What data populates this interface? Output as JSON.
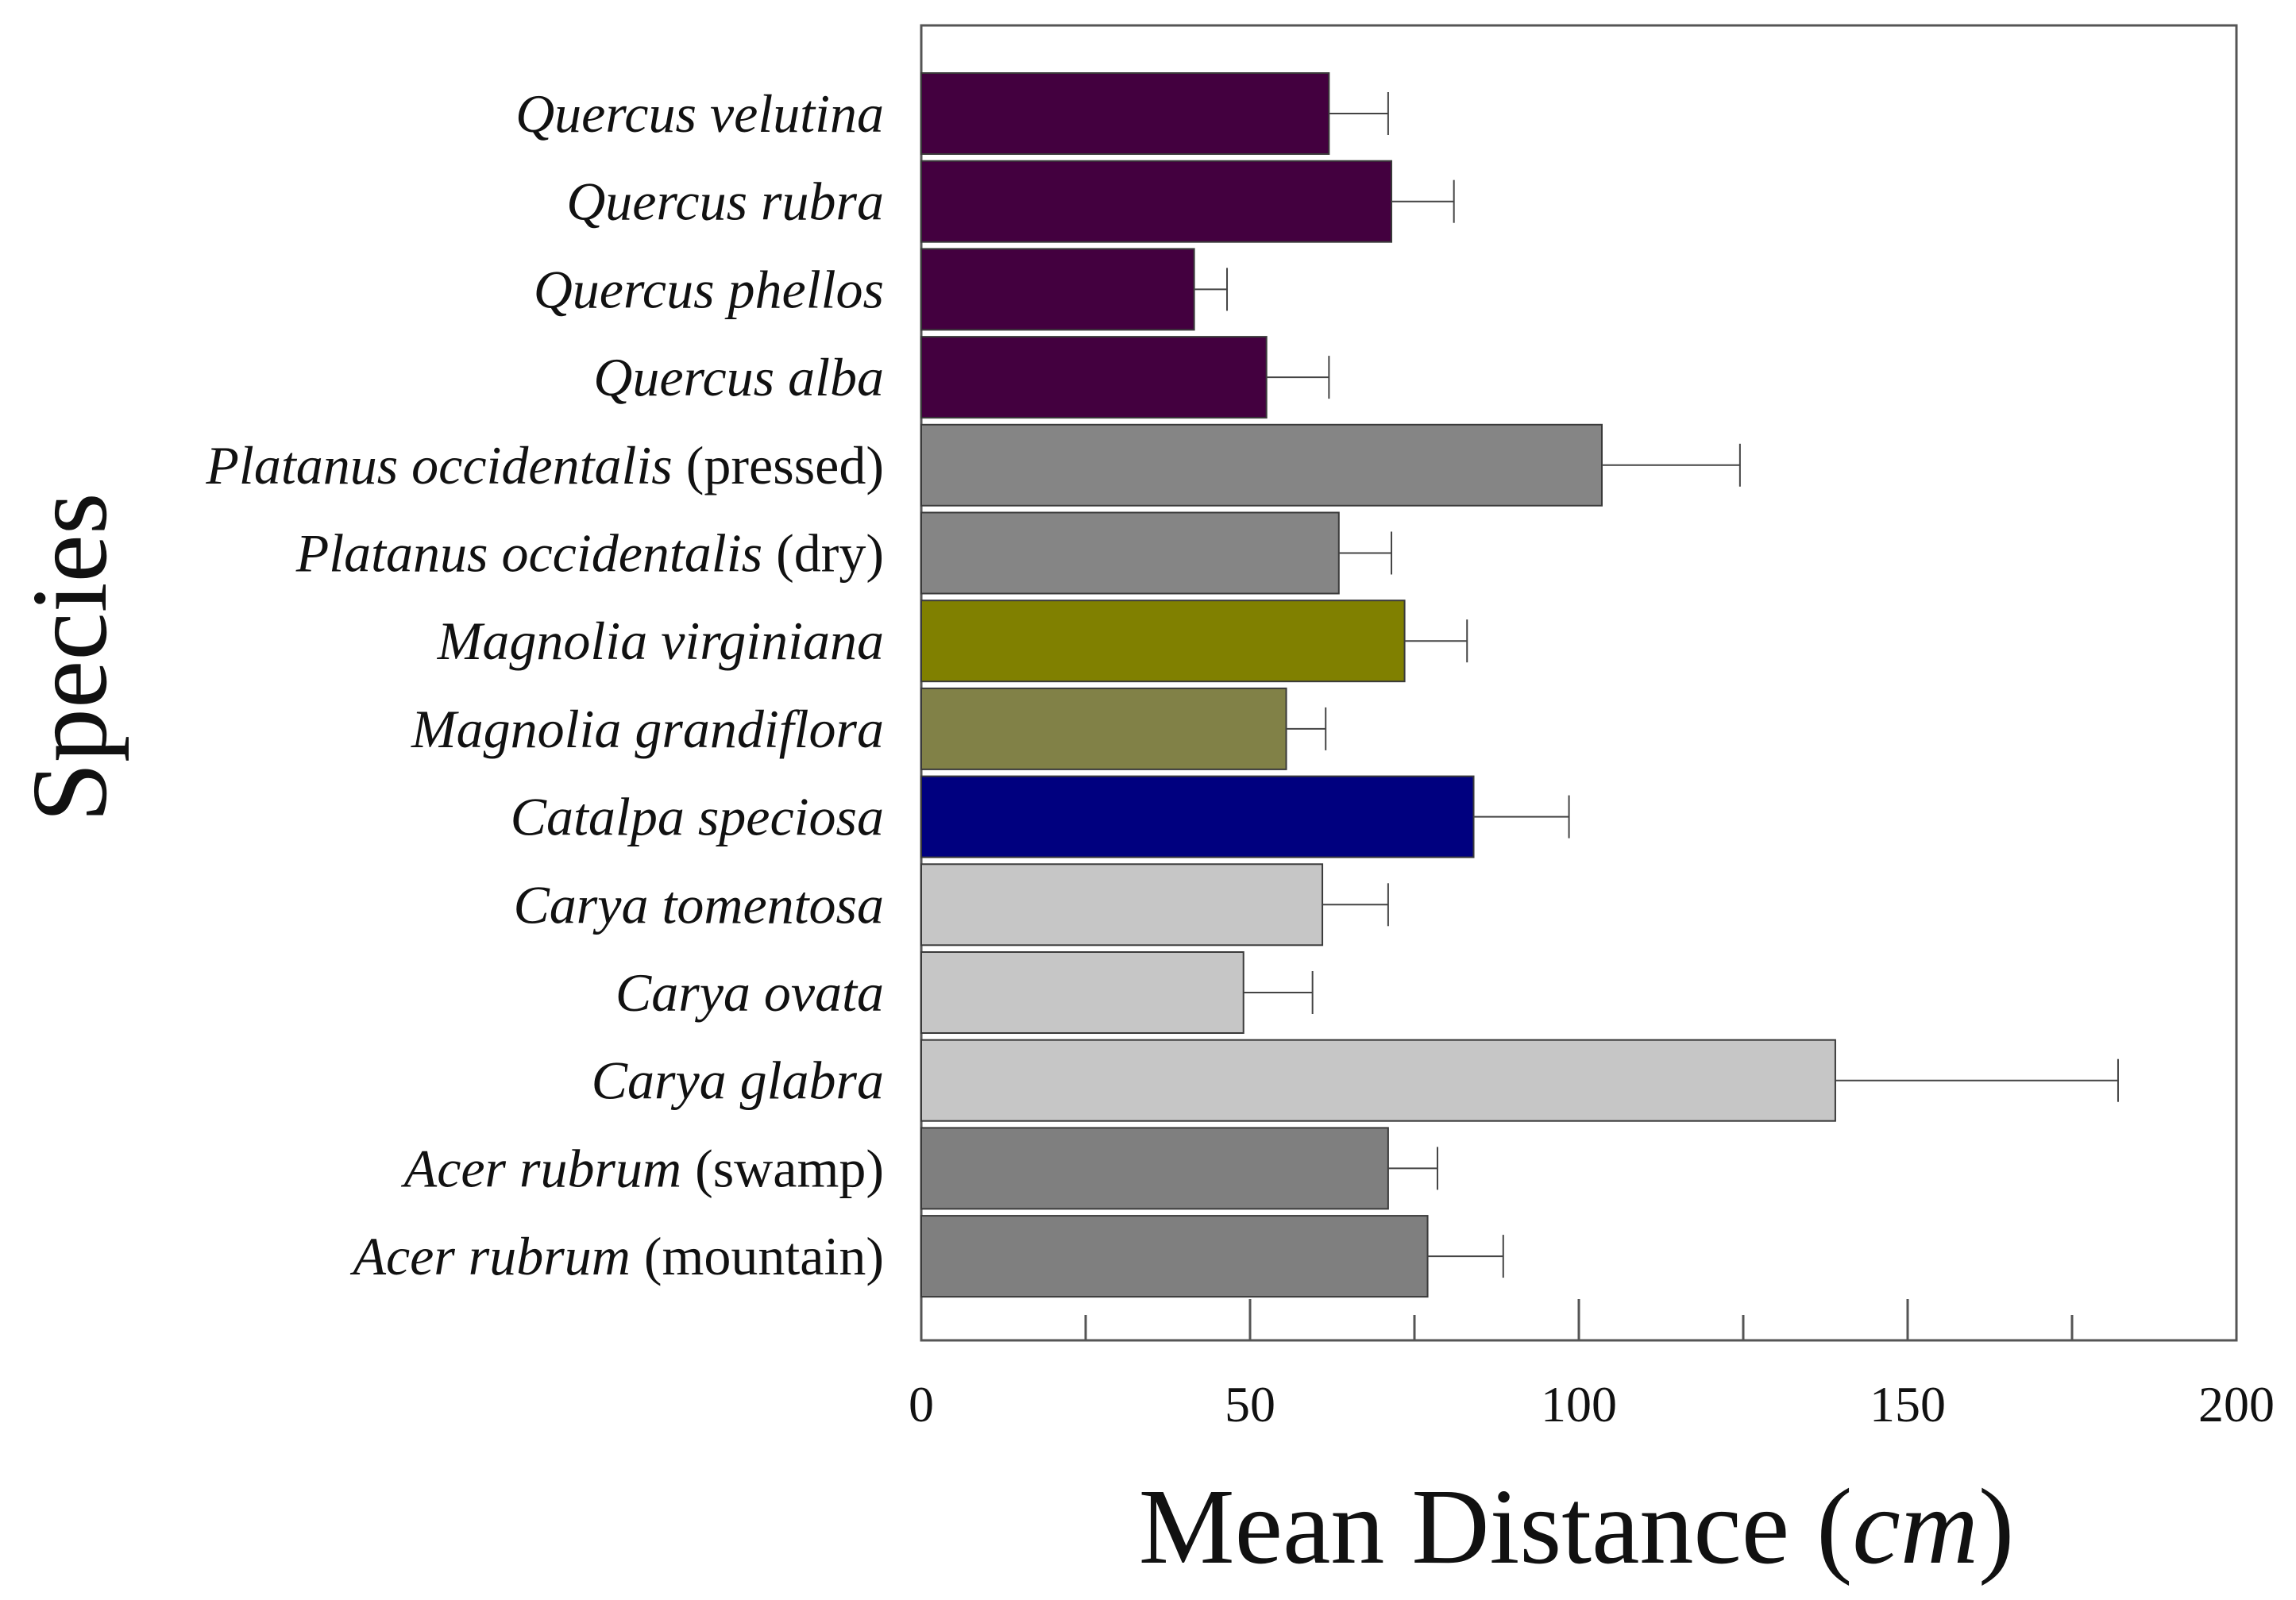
{
  "chart_data": {
    "type": "bar",
    "orientation": "horizontal",
    "title": "",
    "xlabel": "Mean Distance (cm)",
    "xlabel_parts": [
      {
        "text": "Mean Distance (",
        "italic": false
      },
      {
        "text": "cm",
        "italic": true
      },
      {
        "text": ")",
        "italic": false
      }
    ],
    "ylabel": "Species",
    "xlim": [
      0,
      200
    ],
    "xticks": [
      0,
      50,
      100,
      150,
      200
    ],
    "xtick_labels": [
      "0",
      "50",
      "100",
      "150",
      "200"
    ],
    "grid": false,
    "legend": "none",
    "categories": [
      {
        "name": "Quercus velutina",
        "suffix": "",
        "value": 62,
        "error": 9,
        "color": "#43003f"
      },
      {
        "name": "Quercus rubra",
        "suffix": "",
        "value": 71.5,
        "error": 9.5,
        "color": "#43003f"
      },
      {
        "name": "Quercus phellos",
        "suffix": "",
        "value": 41.5,
        "error": 5,
        "color": "#43003f"
      },
      {
        "name": "Quercus alba",
        "suffix": "",
        "value": 52.5,
        "error": 9.5,
        "color": "#43003f"
      },
      {
        "name": "Platanus occidentalis",
        "suffix": " (pressed)",
        "value": 103.5,
        "error": 21,
        "color": "#858585"
      },
      {
        "name": "Platanus occidentalis",
        "suffix": " (dry)",
        "value": 63.5,
        "error": 8,
        "color": "#858585"
      },
      {
        "name": "Magnolia virginiana",
        "suffix": "",
        "value": 73.5,
        "error": 9.5,
        "color": "#808000"
      },
      {
        "name": "Magnolia grandiflora",
        "suffix": "",
        "value": 55.5,
        "error": 6,
        "color": "#818147"
      },
      {
        "name": "Catalpa speciosa",
        "suffix": "",
        "value": 84,
        "error": 14.5,
        "color": "#00007f"
      },
      {
        "name": "Carya tomentosa",
        "suffix": "",
        "value": 61,
        "error": 10,
        "color": "#c6c6c6"
      },
      {
        "name": "Carya ovata",
        "suffix": "",
        "value": 49,
        "error": 10.5,
        "color": "#c6c6c6"
      },
      {
        "name": "Carya glabra",
        "suffix": "",
        "value": 139,
        "error": 43,
        "color": "#c6c6c6"
      },
      {
        "name": "Acer rubrum",
        "suffix": " (swamp)",
        "value": 71,
        "error": 7.5,
        "color": "#7f7f7f"
      },
      {
        "name": "Acer rubrum",
        "suffix": " (mountain)",
        "value": 77,
        "error": 11.5,
        "color": "#7f7f7f"
      }
    ]
  }
}
